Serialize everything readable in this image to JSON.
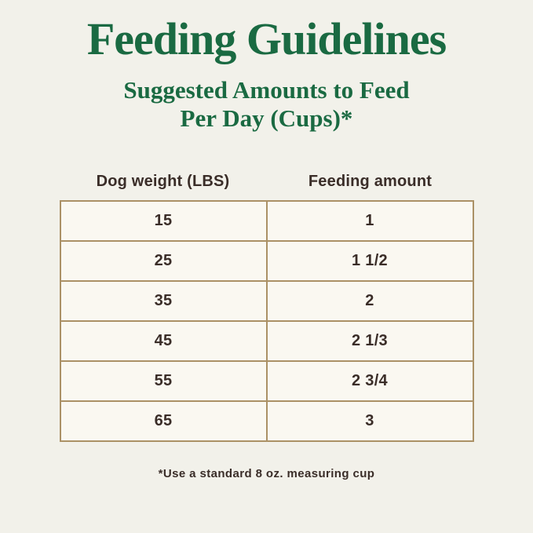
{
  "header": {
    "title": "Feeding Guidelines",
    "subtitle_line1": "Suggested Amounts to Feed",
    "subtitle_line2": "Per Day (Cups)*"
  },
  "table": {
    "columns": [
      {
        "label": "Dog weight (LBS)"
      },
      {
        "label": "Feeding amount"
      }
    ],
    "rows": [
      {
        "weight": "15",
        "amount": "1"
      },
      {
        "weight": "25",
        "amount": "1 1/2"
      },
      {
        "weight": "35",
        "amount": "2"
      },
      {
        "weight": "45",
        "amount": "2 1/3"
      },
      {
        "weight": "55",
        "amount": "2 3/4"
      },
      {
        "weight": "65",
        "amount": "3"
      }
    ]
  },
  "footnote": {
    "text": "*Use a standard 8 oz. measuring cup"
  },
  "colors": {
    "title_green": "#1a6a42",
    "page_bg": "#f2f1ea",
    "cell_bg": "#faf8f1",
    "table_border": "#ab9166",
    "text_dark": "#3a2d28"
  },
  "chart_data": {
    "type": "table",
    "title": "Feeding Guidelines",
    "subtitle": "Suggested Amounts to Feed Per Day (Cups)*",
    "columns": [
      "Dog weight (LBS)",
      "Feeding amount"
    ],
    "rows": [
      [
        "15",
        "1"
      ],
      [
        "25",
        "1 1/2"
      ],
      [
        "35",
        "2"
      ],
      [
        "45",
        "2 1/3"
      ],
      [
        "55",
        "2 3/4"
      ],
      [
        "65",
        "3"
      ]
    ],
    "footnote": "*Use a standard 8 oz. measuring cup",
    "layout_hints": {
      "title_color": "#1a6a42",
      "background": "#f2f1ea",
      "border_color": "#ab9166",
      "columns_equal_width": true,
      "all_text_centered": true
    }
  }
}
